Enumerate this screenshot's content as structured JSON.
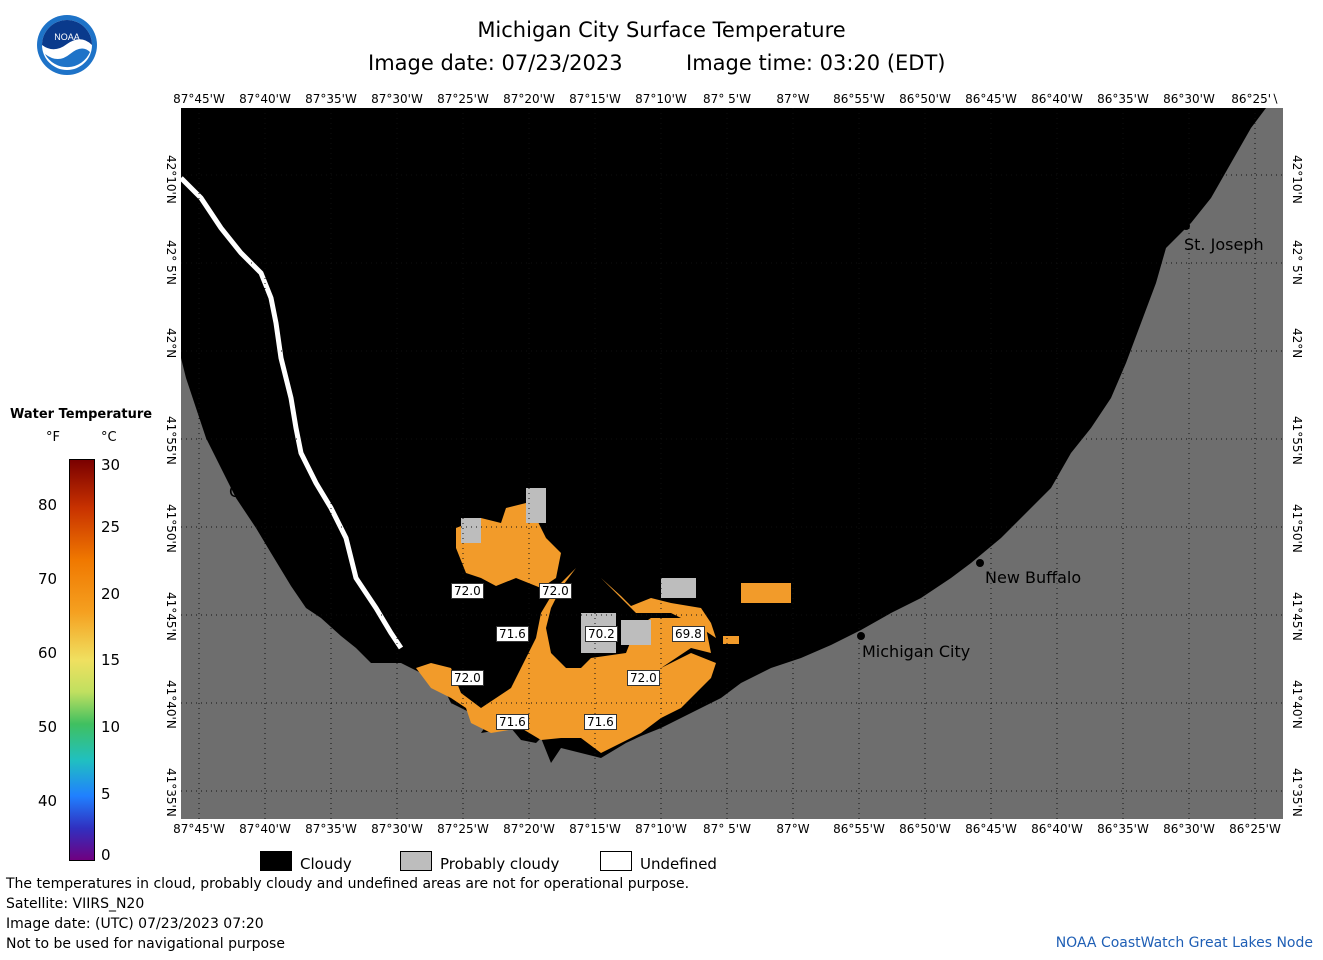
{
  "header": {
    "title": "Michigan City Surface Temperature",
    "date_label": "Image date: 07/23/2023",
    "time_label": "Image time: 03:20 (EDT)",
    "logo_text": "NOAA"
  },
  "axes": {
    "longitude_labels": [
      "87°45'W",
      "87°40'W",
      "87°35'W",
      "87°30'W",
      "87°25'W",
      "87°20'W",
      "87°15'W",
      "87°10'W",
      "87° 5'W",
      "87°W",
      "86°55'W",
      "86°50'W",
      "86°45'W",
      "86°40'W",
      "86°35'W",
      "86°30'W",
      "86°25'W"
    ],
    "top_last_label": "86°25'∖",
    "latitude_labels": [
      "42°10'N",
      "42° 5'N",
      "42°N",
      "41°55'N",
      "41°50'N",
      "41°45'N",
      "41°40'N",
      "41°35'N"
    ]
  },
  "cities": {
    "chicago": "Chicago",
    "st_joseph": "St. Joseph",
    "new_buffalo": "New Buffalo",
    "michigan_city": "Michigan City"
  },
  "temperature_labels": [
    "72.0",
    "72.0",
    "71.6",
    "70.2",
    "69.8",
    "72.0",
    "72.0",
    "71.6",
    "71.6"
  ],
  "legend": {
    "title": "Water Temperature",
    "unit_f": "°F",
    "unit_c": "°C",
    "f_ticks": [
      "80",
      "70",
      "60",
      "50",
      "40"
    ],
    "c_ticks": [
      "30",
      "25",
      "20",
      "15",
      "10",
      "5",
      "0"
    ]
  },
  "key": {
    "cloudy": "Cloudy",
    "probably_cloudy": "Probably cloudy",
    "undefined": "Undefined"
  },
  "footer": {
    "note": "The temperatures in cloud, probably cloudy and undefined areas are not for operational purpose.",
    "satellite": "Satellite: VIIRS_N20",
    "utc_date": "Image date: (UTC) 07/23/2023  07:20",
    "warning": "Not to be used for navigational purpose",
    "credit": "NOAA CoastWatch Great Lakes Node"
  },
  "colors": {
    "land": "#6e6e6e",
    "cloud": "#000000",
    "water_warm": "#f29b2a",
    "probably_cloudy": "#bdbdbd",
    "credit": "#1f5fb5"
  }
}
